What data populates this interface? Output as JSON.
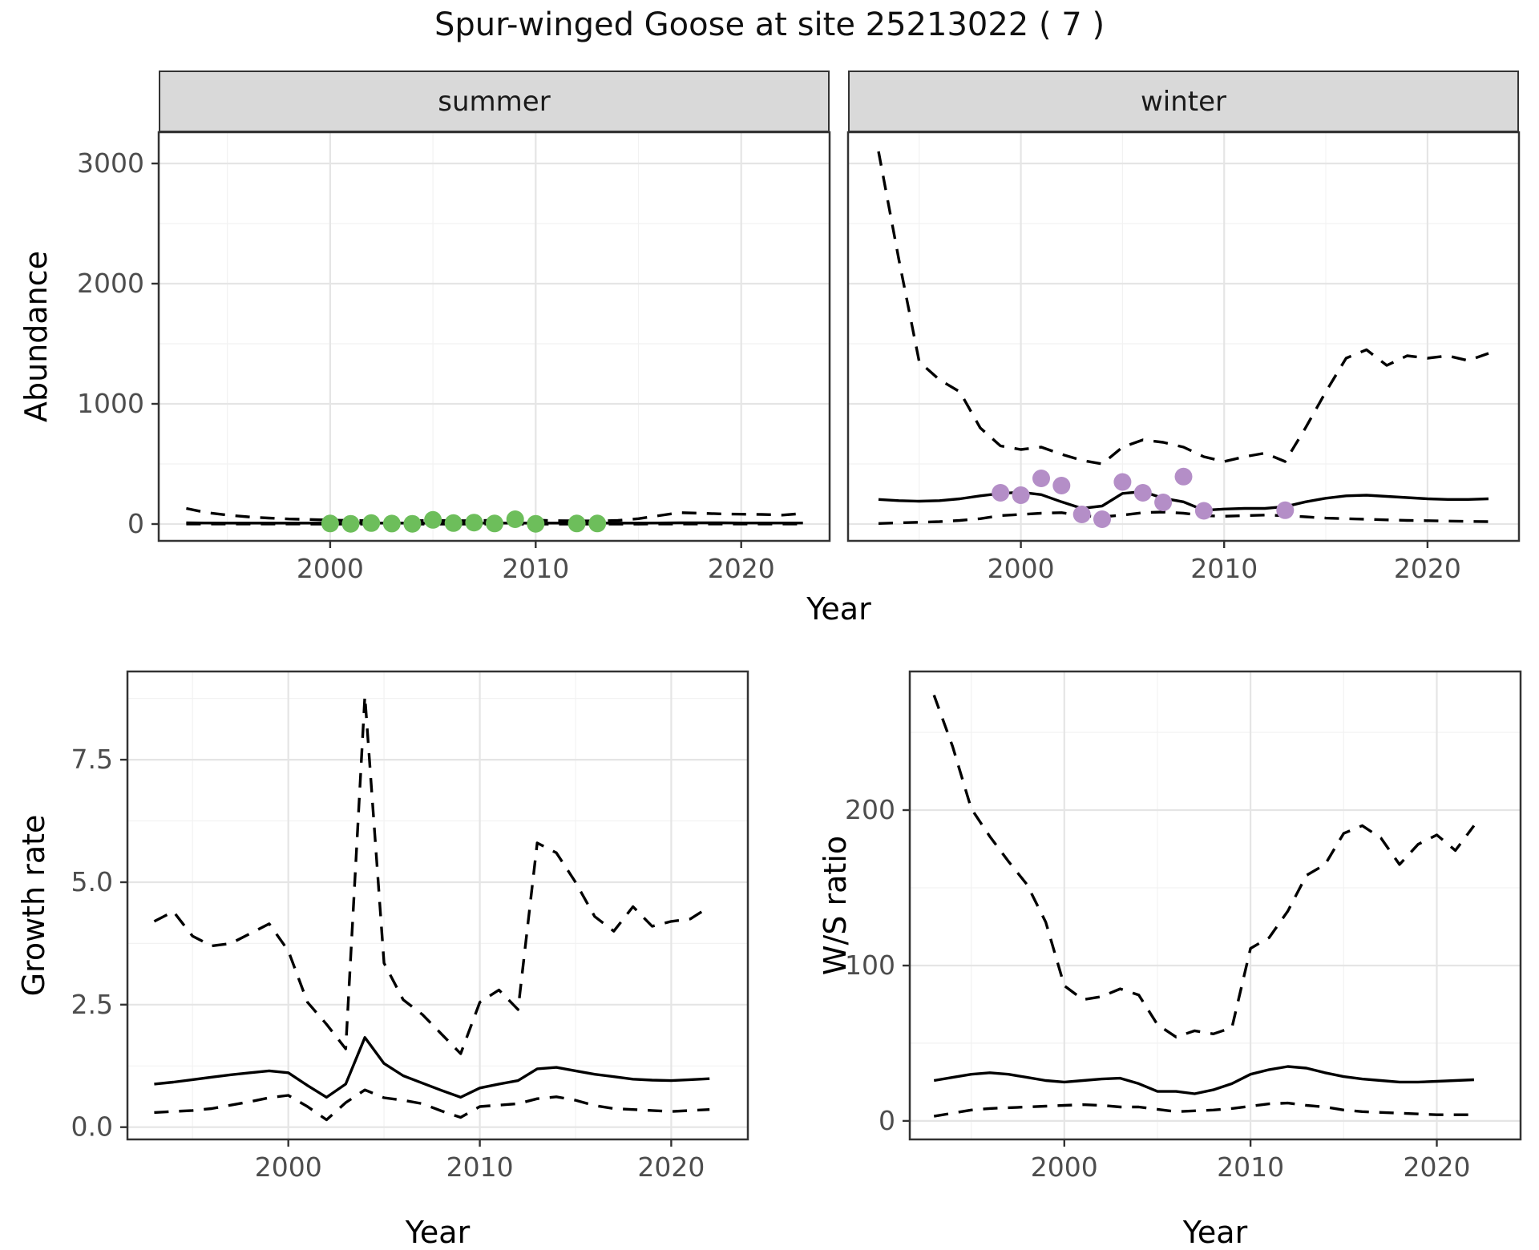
{
  "title": "Spur-winged Goose at site 25213022 ( 7 )",
  "colors": {
    "background": "#ffffff",
    "panel_bg": "#ffffff",
    "panel_border": "#333333",
    "grid_major": "#e5e5e5",
    "grid_minor": "#f2f2f2",
    "axis_text": "#4d4d4d",
    "tick_mark": "#333333",
    "line": "#000000",
    "summer_points": "#6dbe5b",
    "winter_points": "#b48ec7",
    "strip_bg": "#d9d9d9"
  },
  "top_row": {
    "ylabel": "Abundance",
    "xlabel": "Year",
    "facets": [
      {
        "label": "summer"
      },
      {
        "label": "winter"
      }
    ]
  },
  "bottom_row": {
    "left": {
      "ylabel": "Growth rate",
      "xlabel": "Year"
    },
    "right": {
      "ylabel": "W/S ratio",
      "xlabel": "Year"
    }
  },
  "chart_data": [
    {
      "id": "abundance-summer",
      "type": "line",
      "facet": "summer",
      "ylabel": "Abundance",
      "xlabel": "Year",
      "xlim": [
        1991.66,
        2024.3
      ],
      "ylim": [
        -140,
        3260
      ],
      "xticks": {
        "values": [
          2000,
          2010,
          2020
        ],
        "labels": [
          "2000",
          "2010",
          "2020"
        ]
      },
      "yticks": {
        "values": [
          0,
          1000,
          2000,
          3000
        ],
        "labels": [
          "0",
          "1000",
          "2000",
          "3000"
        ]
      },
      "xticks_minor": [
        1995,
        2005,
        2015
      ],
      "yticks_minor": [
        500,
        1500,
        2500
      ],
      "x": [
        1993,
        1994,
        1995,
        1996,
        1997,
        1998,
        1999,
        2000,
        2001,
        2002,
        2003,
        2004,
        2005,
        2006,
        2007,
        2008,
        2009,
        2010,
        2011,
        2012,
        2013,
        2014,
        2015,
        2016,
        2017,
        2018,
        2019,
        2020,
        2021,
        2022,
        2023
      ],
      "series": [
        {
          "name": "upper_ci",
          "style": "dashed",
          "values": [
            130,
            95,
            75,
            60,
            50,
            42,
            38,
            33,
            30,
            28,
            27,
            27,
            30,
            28,
            28,
            32,
            38,
            33,
            28,
            27,
            26,
            30,
            45,
            70,
            95,
            90,
            85,
            82,
            80,
            75,
            88
          ]
        },
        {
          "name": "median",
          "style": "solid",
          "values": [
            10,
            9,
            8,
            8,
            8,
            8,
            8,
            8,
            8,
            8,
            8,
            8,
            8,
            8,
            8,
            8,
            8,
            8,
            8,
            8,
            8,
            8,
            8,
            9,
            10,
            10,
            10,
            9,
            9,
            9,
            9
          ]
        },
        {
          "name": "lower_ci",
          "style": "dashed",
          "values": [
            1,
            1,
            1,
            1,
            1,
            1,
            0,
            0,
            0,
            0,
            0,
            0,
            0,
            0,
            0,
            0,
            0,
            0,
            0,
            0,
            0,
            0,
            0,
            1,
            1,
            1,
            1,
            1,
            1,
            1,
            1
          ]
        }
      ],
      "points": {
        "name": "observed-summer-counts",
        "color_key": "summer_points",
        "x": [
          2000,
          2001,
          2002,
          2003,
          2004,
          2005,
          2006,
          2007,
          2008,
          2009,
          2010,
          2012,
          2013
        ],
        "y": [
          5,
          2,
          8,
          4,
          2,
          35,
          8,
          12,
          5,
          40,
          2,
          5,
          5
        ]
      }
    },
    {
      "id": "abundance-winter",
      "type": "line",
      "facet": "winter",
      "ylabel": "Abundance",
      "xlabel": "Year",
      "xlim": [
        1991.5,
        2024.5
      ],
      "ylim": [
        -140,
        3260
      ],
      "xticks": {
        "values": [
          2000,
          2010,
          2020
        ],
        "labels": [
          "2000",
          "2010",
          "2020"
        ]
      },
      "yticks": {
        "values": [
          0,
          1000,
          2000,
          3000
        ],
        "labels": [
          "0",
          "1000",
          "2000",
          "3000"
        ]
      },
      "xticks_minor": [
        1995,
        2005,
        2015
      ],
      "yticks_minor": [
        500,
        1500,
        2500
      ],
      "show_y_labels": false,
      "x": [
        1993,
        1994,
        1995,
        1996,
        1997,
        1998,
        1999,
        2000,
        2001,
        2002,
        2003,
        2004,
        2005,
        2006,
        2007,
        2008,
        2009,
        2010,
        2011,
        2012,
        2013,
        2014,
        2015,
        2016,
        2017,
        2018,
        2019,
        2020,
        2021,
        2022,
        2023
      ],
      "series": [
        {
          "name": "upper_ci",
          "style": "dashed",
          "values": [
            3100,
            2200,
            1350,
            1200,
            1100,
            800,
            650,
            620,
            640,
            580,
            530,
            500,
            640,
            700,
            680,
            640,
            560,
            520,
            560,
            590,
            520,
            800,
            1100,
            1380,
            1450,
            1320,
            1400,
            1380,
            1400,
            1360,
            1420
          ]
        },
        {
          "name": "median",
          "style": "solid",
          "values": [
            205,
            195,
            190,
            195,
            210,
            235,
            255,
            265,
            245,
            185,
            130,
            150,
            255,
            270,
            215,
            185,
            115,
            125,
            130,
            130,
            145,
            185,
            215,
            235,
            240,
            230,
            220,
            210,
            205,
            205,
            210
          ]
        },
        {
          "name": "lower_ci",
          "style": "dashed",
          "values": [
            5,
            10,
            15,
            20,
            30,
            45,
            70,
            80,
            90,
            95,
            70,
            60,
            75,
            95,
            100,
            90,
            70,
            65,
            70,
            75,
            70,
            60,
            50,
            45,
            40,
            35,
            30,
            28,
            25,
            22,
            20
          ]
        }
      ],
      "points": {
        "name": "observed-winter-counts",
        "color_key": "winter_points",
        "x": [
          1999,
          2000,
          2001,
          2002,
          2003,
          2004,
          2005,
          2006,
          2007,
          2008,
          2009,
          2013
        ],
        "y": [
          260,
          240,
          380,
          320,
          80,
          40,
          350,
          260,
          180,
          395,
          110,
          115
        ]
      }
    },
    {
      "id": "growth-rate",
      "type": "line",
      "ylabel": "Growth rate",
      "xlabel": "Year",
      "xlim": [
        1991.6,
        2024.0
      ],
      "ylim": [
        -0.25,
        9.3
      ],
      "xticks": {
        "values": [
          2000,
          2010,
          2020
        ],
        "labels": [
          "2000",
          "2010",
          "2020"
        ]
      },
      "yticks": {
        "values": [
          0,
          2.5,
          5,
          7.5
        ],
        "labels": [
          "0.0",
          "2.5",
          "5.0",
          "7.5"
        ]
      },
      "xticks_minor": [
        1995,
        2005,
        2015
      ],
      "yticks_minor": [
        1.25,
        3.75,
        6.25,
        8.75
      ],
      "x": [
        1993,
        1994,
        1995,
        1996,
        1997,
        1998,
        1999,
        2000,
        2001,
        2002,
        2003,
        2004,
        2005,
        2006,
        2007,
        2008,
        2009,
        2010,
        2011,
        2012,
        2013,
        2014,
        2015,
        2016,
        2017,
        2018,
        2019,
        2020,
        2021,
        2022
      ],
      "series": [
        {
          "name": "upper_ci",
          "style": "dashed",
          "values": [
            4.2,
            4.4,
            3.9,
            3.7,
            3.75,
            3.95,
            4.15,
            3.6,
            2.55,
            2.1,
            1.6,
            8.8,
            3.35,
            2.6,
            2.3,
            1.9,
            1.5,
            2.55,
            2.8,
            2.4,
            5.8,
            5.6,
            5.0,
            4.3,
            4.0,
            4.5,
            4.1,
            4.2,
            4.25,
            4.5
          ]
        },
        {
          "name": "median",
          "style": "solid",
          "values": [
            0.88,
            0.92,
            0.97,
            1.02,
            1.07,
            1.11,
            1.15,
            1.11,
            0.85,
            0.61,
            0.88,
            1.83,
            1.3,
            1.05,
            0.9,
            0.75,
            0.61,
            0.8,
            0.88,
            0.95,
            1.19,
            1.22,
            1.15,
            1.08,
            1.03,
            0.98,
            0.96,
            0.95,
            0.97,
            0.99
          ]
        },
        {
          "name": "lower_ci",
          "style": "dashed",
          "values": [
            0.3,
            0.32,
            0.34,
            0.38,
            0.45,
            0.52,
            0.6,
            0.65,
            0.42,
            0.15,
            0.5,
            0.76,
            0.6,
            0.55,
            0.48,
            0.33,
            0.2,
            0.42,
            0.45,
            0.48,
            0.58,
            0.62,
            0.55,
            0.44,
            0.38,
            0.36,
            0.34,
            0.32,
            0.34,
            0.36
          ]
        }
      ]
    },
    {
      "id": "ws-ratio",
      "type": "line",
      "ylabel": "W/S ratio",
      "xlabel": "Year",
      "xlim": [
        1991.7,
        2024.5
      ],
      "ylim": [
        -11.9,
        289.2
      ],
      "xticks": {
        "values": [
          2000,
          2010,
          2020
        ],
        "labels": [
          "2000",
          "2010",
          "2020"
        ]
      },
      "yticks": {
        "values": [
          0,
          100,
          200
        ],
        "labels": [
          "0",
          "100",
          "200"
        ]
      },
      "xticks_minor": [
        1995,
        2005,
        2015
      ],
      "yticks_minor": [
        50,
        150,
        250
      ],
      "x": [
        1993,
        1994,
        1995,
        1996,
        1997,
        1998,
        1999,
        2000,
        2001,
        2002,
        2003,
        2004,
        2005,
        2006,
        2007,
        2008,
        2009,
        2010,
        2011,
        2012,
        2013,
        2014,
        2015,
        2016,
        2017,
        2018,
        2019,
        2020,
        2021,
        2022
      ],
      "series": [
        {
          "name": "upper_ci",
          "style": "dashed",
          "values": [
            274,
            241,
            201,
            183,
            167,
            152,
            128,
            87,
            78,
            80,
            85,
            81,
            62,
            54,
            58,
            56,
            60,
            111,
            118,
            135,
            158,
            165,
            185,
            190,
            182,
            165,
            178,
            184,
            174,
            190
          ]
        },
        {
          "name": "median",
          "style": "solid",
          "values": [
            26,
            28,
            30,
            31,
            30,
            28,
            26,
            25,
            26,
            27,
            27.5,
            24,
            19,
            19,
            17.5,
            20,
            24,
            30,
            33,
            35,
            34,
            31,
            28.5,
            27,
            26,
            25,
            25,
            25.5,
            26,
            26.5
          ]
        },
        {
          "name": "lower_ci",
          "style": "dashed",
          "values": [
            3,
            5,
            7,
            8,
            8.5,
            9,
            9.5,
            10,
            10.5,
            10,
            9,
            9,
            7.5,
            6,
            6.5,
            7,
            8,
            9.5,
            11,
            11.5,
            10,
            9,
            7,
            6,
            5.5,
            5,
            4.5,
            4,
            4,
            4
          ]
        }
      ]
    }
  ]
}
